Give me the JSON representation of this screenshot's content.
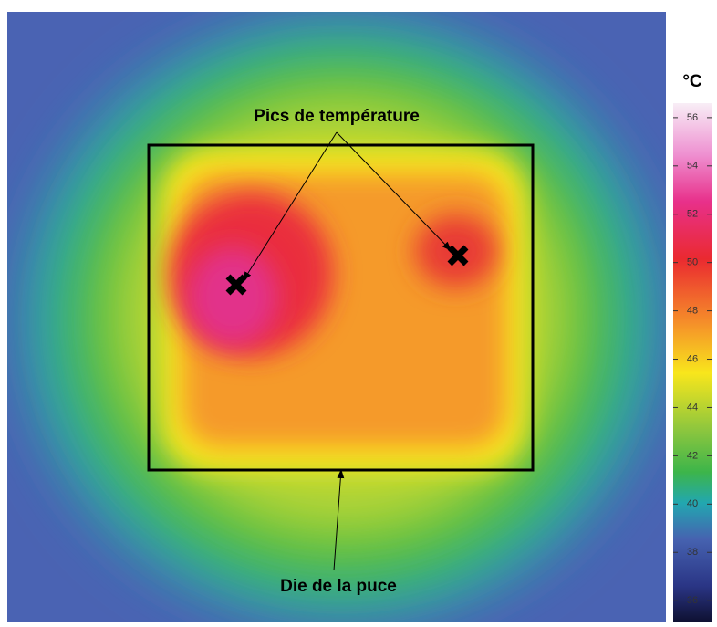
{
  "annotations": {
    "peaks": "Pics de température",
    "die": "Die de la puce"
  },
  "colorbar": {
    "unit": "°C",
    "range": [
      35.1,
      56.6
    ],
    "ticks": [
      36,
      38,
      40,
      42,
      44,
      46,
      48,
      50,
      52,
      54,
      56
    ]
  }
}
